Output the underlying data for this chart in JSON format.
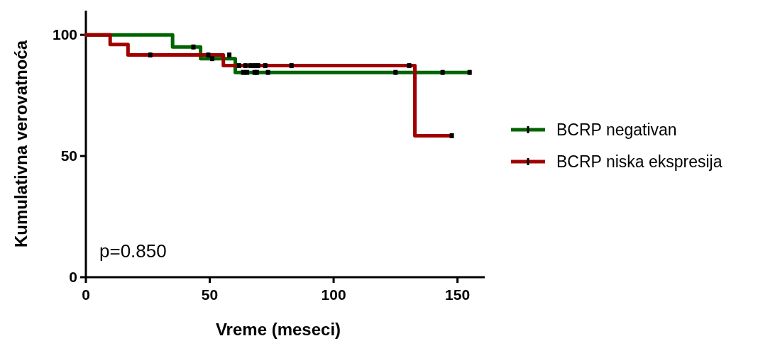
{
  "chart_data": {
    "type": "step",
    "xlabel": "Vreme (meseci)",
    "ylabel": "Kumulativna verovatnoća",
    "xlim": [
      0,
      161
    ],
    "xticks": [
      0,
      50,
      100,
      150
    ],
    "ylim": [
      0,
      110
    ],
    "yticks": [
      0,
      50,
      100
    ],
    "grid": false,
    "legend": "right",
    "line_style": "solid",
    "annotations": [
      "p=0.850"
    ],
    "series": [
      {
        "name": "BCRP negativan",
        "color": "#006400",
        "x": [
          0,
          35,
          46.3,
          60.3,
          154.9
        ],
        "values": [
          100,
          95,
          90.2,
          84.5,
          84.5
        ]
      },
      {
        "name": "BCRP niska ekspresija",
        "color": "#a00000",
        "x": [
          0,
          9.8,
          17,
          55.5,
          132.8,
          147.7
        ],
        "values": [
          100,
          96,
          91.7,
          87.3,
          58.4,
          58.4
        ]
      },
      {
        "type": "scatter",
        "marker": "square",
        "color": "#000000",
        "x": [
          43.4,
          51,
          63.5,
          65,
          68.1,
          69,
          73.5,
          125,
          144,
          154.9
        ],
        "values": [
          95,
          90.2,
          84.5,
          84.5,
          84.5,
          84.5,
          84.5,
          84.5,
          84.5,
          84.5
        ]
      },
      {
        "type": "scatter",
        "marker": "square",
        "color": "#000000",
        "x": [
          26,
          49.4,
          57.9,
          61.8,
          64.4,
          66.4,
          68,
          69.5,
          72.4,
          83,
          130.5,
          147.7
        ],
        "values": [
          91.7,
          91.7,
          91.7,
          87.3,
          87.3,
          87.3,
          87.3,
          87.3,
          87.3,
          87.3,
          87.3,
          58.4
        ]
      }
    ]
  }
}
